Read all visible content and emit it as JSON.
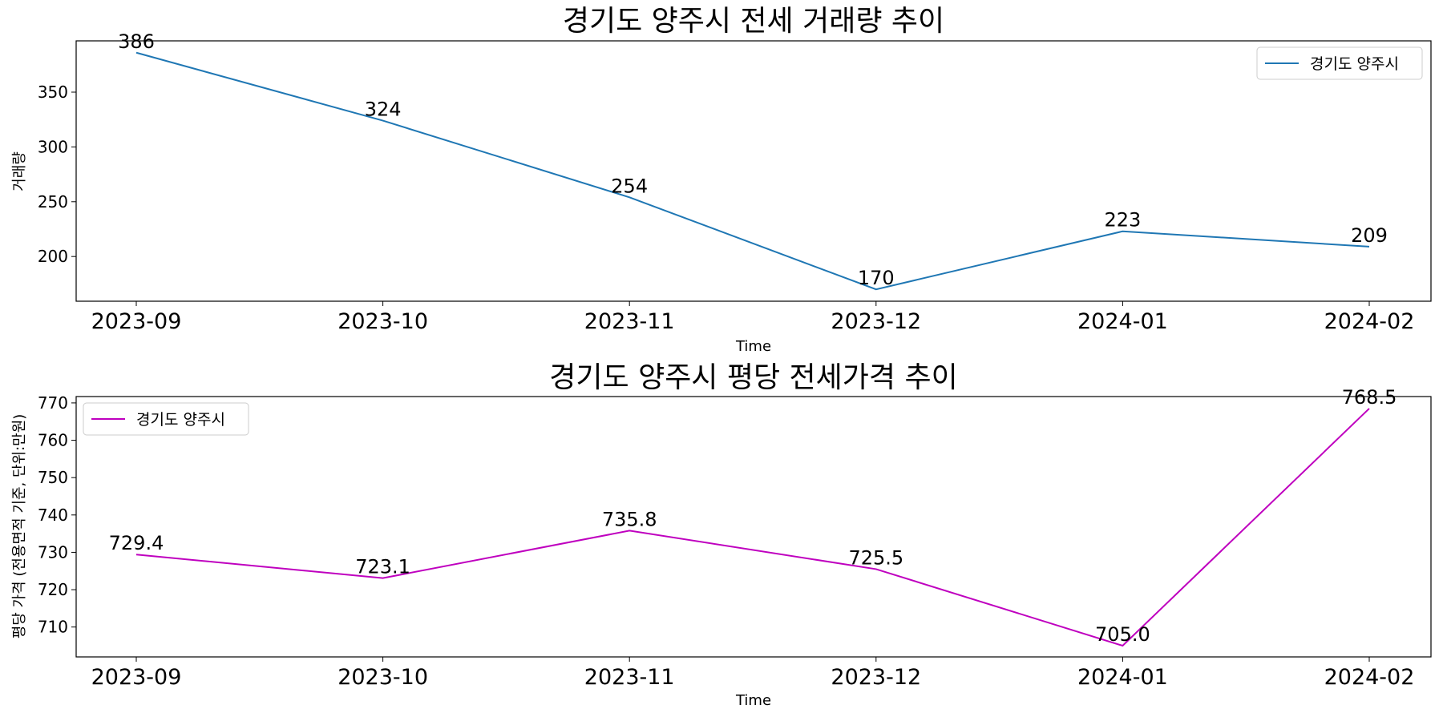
{
  "chart_data": [
    {
      "type": "line",
      "title": "경기도 양주시 전세 거래량 추이",
      "xlabel": "Time",
      "ylabel": "거래량",
      "categories": [
        "2023-09",
        "2023-10",
        "2023-11",
        "2023-12",
        "2024-01",
        "2024-02"
      ],
      "series": [
        {
          "name": "경기도 양주시",
          "color": "#1f77b4",
          "values": [
            386,
            324,
            254,
            170,
            223,
            209
          ]
        }
      ],
      "data_labels": [
        "386",
        "324",
        "254",
        "170",
        "223",
        "209"
      ],
      "yticks": [
        200,
        250,
        300,
        350
      ],
      "ytick_labels": [
        "200",
        "250",
        "300",
        "350"
      ],
      "ylim": [
        159.2,
        396.8
      ],
      "grid": false,
      "legend": "top-right"
    },
    {
      "type": "line",
      "title": "경기도 양주시 평당 전세가격 추이",
      "xlabel": "Time",
      "ylabel": "평당 가격 (전용면적 기준, 단위:만원)",
      "categories": [
        "2023-09",
        "2023-10",
        "2023-11",
        "2023-12",
        "2024-01",
        "2024-02"
      ],
      "series": [
        {
          "name": "경기도 양주시",
          "color": "#bf00bf",
          "values": [
            729.4,
            723.1,
            735.8,
            725.5,
            705.0,
            768.5
          ]
        }
      ],
      "data_labels": [
        "729.4",
        "723.1",
        "735.8",
        "725.5",
        "705.0",
        "768.5"
      ],
      "yticks": [
        710,
        720,
        730,
        740,
        750,
        760,
        770
      ],
      "ytick_labels": [
        "710",
        "720",
        "730",
        "740",
        "750",
        "760",
        "770"
      ],
      "ylim": [
        702.0,
        771.7
      ],
      "grid": false,
      "legend": "top-left"
    }
  ]
}
